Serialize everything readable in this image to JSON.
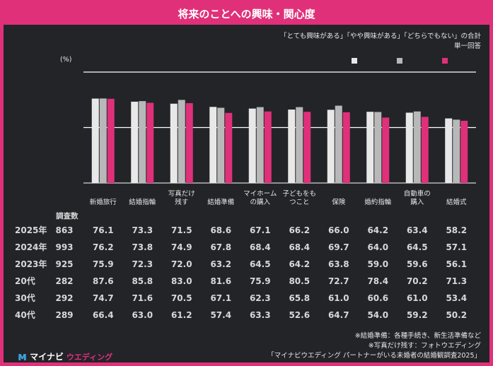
{
  "title": "将来のことへの興味・関心度",
  "note_line1": "「とても興味がある」「やや興味がある」「どちらでもない」の合計",
  "note_line2": "単一回答",
  "unit": "(%)",
  "n_header": "調査数",
  "colors": {
    "y2025": "#e8e8e8",
    "y2024": "#b8b8b8",
    "y2023": "#e0307a",
    "background": "#222428",
    "accent": "#e0307a"
  },
  "chart_data": {
    "type": "bar",
    "categories": [
      "新婚旅行",
      "結婚指輪",
      "写真だけ残す",
      "結婚準備",
      "マイホームの購入",
      "子どもをもつこと",
      "保険",
      "婚約指輪",
      "自動車の購入",
      "結婚式"
    ],
    "series": [
      {
        "values": [
          76.1,
          73.3,
          71.5,
          68.6,
          67.1,
          66.2,
          66.0,
          64.2,
          63.4,
          58.2
        ]
      },
      {
        "values": [
          76.2,
          73.8,
          74.9,
          67.8,
          68.4,
          68.4,
          69.7,
          64.0,
          64.5,
          57.1
        ]
      },
      {
        "values": [
          75.9,
          72.3,
          72.0,
          63.2,
          64.5,
          64.2,
          63.8,
          59.0,
          59.6,
          56.1
        ]
      }
    ],
    "ylim": [
      0,
      100
    ],
    "grid": true,
    "legend": "top-right"
  },
  "category_display": [
    [
      "新婚旅行"
    ],
    [
      "結婚指輪"
    ],
    [
      "写真だけ",
      "残す"
    ],
    [
      "結婚準備"
    ],
    [
      "マイホーム",
      "の購入"
    ],
    [
      "子どもをも",
      "つこと"
    ],
    [
      "保険"
    ],
    [
      "婚約指輪"
    ],
    [
      "自動車の",
      "購入"
    ],
    [
      "結婚式"
    ]
  ],
  "table": [
    {
      "label": "2025年",
      "n": "863",
      "values": [
        "76.1",
        "73.3",
        "71.5",
        "68.6",
        "67.1",
        "66.2",
        "66.0",
        "64.2",
        "63.4",
        "58.2"
      ]
    },
    {
      "label": "2024年",
      "n": "993",
      "values": [
        "76.2",
        "73.8",
        "74.9",
        "67.8",
        "68.4",
        "68.4",
        "69.7",
        "64.0",
        "64.5",
        "57.1"
      ]
    },
    {
      "label": "2023年",
      "n": "925",
      "values": [
        "75.9",
        "72.3",
        "72.0",
        "63.2",
        "64.5",
        "64.2",
        "63.8",
        "59.0",
        "59.6",
        "56.1"
      ]
    },
    {
      "label": "20代",
      "n": "282",
      "values": [
        "87.6",
        "85.8",
        "83.0",
        "81.6",
        "75.9",
        "80.5",
        "72.7",
        "78.4",
        "70.2",
        "71.3"
      ]
    },
    {
      "label": "30代",
      "n": "292",
      "values": [
        "74.7",
        "71.6",
        "70.5",
        "67.1",
        "62.3",
        "65.8",
        "61.0",
        "60.6",
        "61.0",
        "53.4"
      ]
    },
    {
      "label": "40代",
      "n": "289",
      "values": [
        "66.4",
        "63.0",
        "61.2",
        "57.4",
        "63.3",
        "52.6",
        "64.7",
        "54.0",
        "59.2",
        "50.2"
      ]
    }
  ],
  "footnotes": [
    "※結婚準備：各種手続き、新生活準備など",
    "※写真だけ残す：フォトウエディング",
    "「マイナビウエディング パートナーがいる未婚者の結婚観調査2025」"
  ],
  "logo": {
    "mark": "м",
    "text1": "マイナビ",
    "text2": "ウエディング"
  }
}
